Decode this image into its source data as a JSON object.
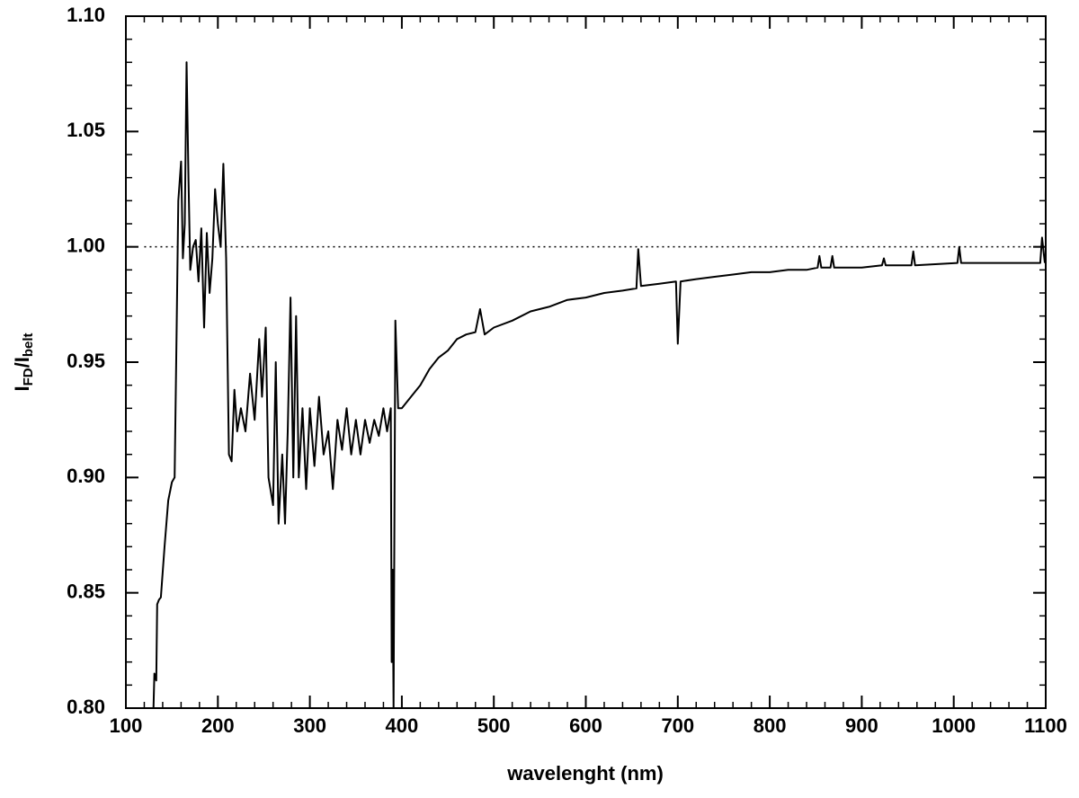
{
  "chart_data": {
    "type": "line",
    "xlabel": "wavelenght (nm)",
    "ylabel_parts": [
      "I",
      "FD",
      "/I",
      "belt"
    ],
    "xlim": [
      100,
      1100
    ],
    "ylim": [
      0.8,
      1.1
    ],
    "xticks": [
      100,
      200,
      300,
      400,
      500,
      600,
      700,
      800,
      900,
      1000,
      1100
    ],
    "yticks": [
      {
        "value": 0.8,
        "label": "0.80"
      },
      0.85,
      {
        "value": 0.9,
        "label": "0.90"
      },
      0.95,
      {
        "value": 1.0,
        "label": "1.00"
      },
      1.05,
      {
        "value": 1.1,
        "label": "1.10"
      }
    ],
    "x_minor_step": 20,
    "y_minor_step": 0.01,
    "reference_line": {
      "y": 1.0,
      "xmin": 120,
      "xmax": 1100
    },
    "series": [
      {
        "color": "#000000",
        "x": [
          130,
          131,
          133,
          134,
          136,
          138,
          142,
          146,
          150,
          153,
          155,
          157,
          160,
          162,
          164,
          166,
          168,
          170,
          173,
          176,
          179,
          182,
          185,
          188,
          191,
          194,
          197,
          200,
          203,
          206,
          209,
          212,
          215,
          218,
          221,
          225,
          230,
          235,
          240,
          245,
          248,
          252,
          255,
          260,
          263,
          266,
          270,
          273,
          276,
          279,
          282,
          285,
          288,
          292,
          296,
          300,
          305,
          310,
          315,
          320,
          325,
          330,
          335,
          340,
          345,
          350,
          355,
          360,
          365,
          370,
          375,
          380,
          384,
          388,
          389,
          390,
          391,
          393,
          396,
          400,
          410,
          420,
          430,
          440,
          450,
          460,
          470,
          480,
          485,
          490,
          500,
          520,
          540,
          560,
          580,
          600,
          620,
          640,
          655,
          657,
          660,
          680,
          698,
          700,
          703,
          720,
          740,
          760,
          780,
          800,
          820,
          840,
          852,
          854,
          856,
          866,
          868,
          870,
          900,
          922,
          924,
          926,
          954,
          956,
          958,
          1004,
          1006,
          1008,
          1050,
          1080,
          1094,
          1096,
          1099
        ],
        "values": [
          0.8,
          0.815,
          0.812,
          0.845,
          0.847,
          0.848,
          0.87,
          0.89,
          0.898,
          0.9,
          0.96,
          1.02,
          1.037,
          0.995,
          1.01,
          1.08,
          1.03,
          0.99,
          1.0,
          1.003,
          0.985,
          1.008,
          0.965,
          1.006,
          0.98,
          0.995,
          1.025,
          1.01,
          1.0,
          1.036,
          0.995,
          0.91,
          0.907,
          0.938,
          0.92,
          0.93,
          0.92,
          0.945,
          0.925,
          0.96,
          0.935,
          0.965,
          0.9,
          0.888,
          0.95,
          0.88,
          0.91,
          0.88,
          0.92,
          0.978,
          0.9,
          0.97,
          0.9,
          0.93,
          0.895,
          0.93,
          0.905,
          0.935,
          0.91,
          0.92,
          0.895,
          0.925,
          0.912,
          0.93,
          0.91,
          0.925,
          0.91,
          0.925,
          0.915,
          0.925,
          0.918,
          0.93,
          0.92,
          0.93,
          0.82,
          0.86,
          0.8,
          0.968,
          0.93,
          0.93,
          0.935,
          0.94,
          0.947,
          0.952,
          0.955,
          0.96,
          0.962,
          0.963,
          0.973,
          0.962,
          0.965,
          0.968,
          0.972,
          0.974,
          0.977,
          0.978,
          0.98,
          0.981,
          0.982,
          0.999,
          0.983,
          0.984,
          0.985,
          0.958,
          0.985,
          0.986,
          0.987,
          0.988,
          0.989,
          0.989,
          0.99,
          0.99,
          0.991,
          0.996,
          0.991,
          0.991,
          0.996,
          0.991,
          0.991,
          0.992,
          0.995,
          0.992,
          0.992,
          0.998,
          0.992,
          0.993,
          1.0,
          0.993,
          0.993,
          0.993,
          0.993,
          1.004,
          0.993
        ]
      }
    ]
  }
}
